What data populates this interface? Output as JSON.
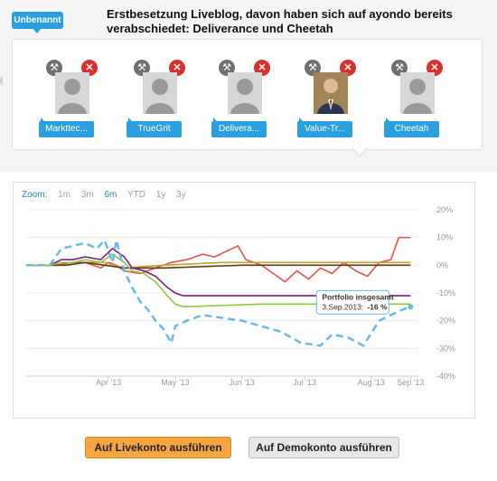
{
  "badge": {
    "label": "Unbenannt"
  },
  "headline": "Erstbesetzung Liveblog, davon haben sich auf ayondo bereits verabschiedet: Deliverance und Cheetah",
  "members": [
    {
      "name": "Markttec...",
      "avatar": "person-silhouette-icon",
      "settings_icon": "wrench-icon",
      "remove_icon": "close-icon"
    },
    {
      "name": "TrueGrit",
      "avatar": "person-silhouette-icon",
      "settings_icon": "wrench-icon",
      "remove_icon": "close-icon"
    },
    {
      "name": "Delivera...",
      "avatar": "person-silhouette-icon",
      "settings_icon": "wrench-icon",
      "remove_icon": "close-icon"
    },
    {
      "name": "Value-Tr...",
      "avatar": "portrait-photo",
      "settings_icon": "wrench-icon",
      "remove_icon": "close-icon"
    },
    {
      "name": "Cheetah",
      "avatar": "person-silhouette-icon",
      "settings_icon": "wrench-icon",
      "remove_icon": "close-icon"
    }
  ],
  "zoom": {
    "label": "Zoom:",
    "options": [
      "1m",
      "3m",
      "6m",
      "YTD",
      "1y",
      "3y"
    ],
    "selected": "6m"
  },
  "tooltip": {
    "title": "Portfolio insgesamt",
    "date": "3.Sep.2013:",
    "value": "-16 %"
  },
  "buttons": {
    "live": "Auf Livekonto ausführen",
    "demo": "Auf Demokonto ausführen"
  },
  "colors": {
    "accent": "#2aa0e0",
    "live_button": "#f7a540",
    "remove": "#d93030"
  },
  "chart_data": {
    "type": "line",
    "x_ticks": [
      "Apr '13",
      "May '13",
      "Jun '13",
      "Jul '13",
      "Aug '13",
      "Sep '13"
    ],
    "y_ticks": [
      "20%",
      "10%",
      "0%",
      "-10%",
      "-20%",
      "-30%",
      "-40%"
    ],
    "ylim": [
      -40,
      20
    ],
    "grid": true,
    "series": [
      {
        "color": "#e8524a",
        "dash": false,
        "points": [
          [
            0,
            0
          ],
          [
            0.08,
            0
          ],
          [
            0.11,
            1
          ],
          [
            0.15,
            1
          ],
          [
            0.19,
            -1
          ],
          [
            0.21,
            1
          ],
          [
            0.23,
            0
          ],
          [
            0.25,
            -2
          ],
          [
            0.29,
            -3
          ],
          [
            0.33,
            -1
          ],
          [
            0.37,
            1
          ],
          [
            0.41,
            2
          ],
          [
            0.45,
            4
          ],
          [
            0.48,
            3
          ],
          [
            0.51,
            5
          ],
          [
            0.54,
            7
          ],
          [
            0.56,
            2
          ],
          [
            0.6,
            0
          ],
          [
            0.63,
            -3
          ],
          [
            0.66,
            -6
          ],
          [
            0.69,
            -2
          ],
          [
            0.72,
            -5
          ],
          [
            0.75,
            -1
          ],
          [
            0.78,
            -3
          ],
          [
            0.81,
            1
          ],
          [
            0.84,
            -2
          ],
          [
            0.87,
            -4
          ],
          [
            0.9,
            1
          ],
          [
            0.93,
            2
          ],
          [
            0.95,
            10
          ],
          [
            0.98,
            10
          ]
        ]
      },
      {
        "color": "#c9a227",
        "dash": false,
        "points": [
          [
            0,
            0
          ],
          [
            0.1,
            0
          ],
          [
            0.15,
            1
          ],
          [
            0.2,
            1
          ],
          [
            0.25,
            -1
          ],
          [
            0.35,
            0
          ],
          [
            0.5,
            1
          ],
          [
            0.7,
            1
          ],
          [
            0.9,
            1
          ],
          [
            0.98,
            1
          ]
        ]
      },
      {
        "color": "#5b3a1a",
        "dash": false,
        "points": [
          [
            0,
            0
          ],
          [
            0.1,
            0
          ],
          [
            0.15,
            1
          ],
          [
            0.25,
            -1
          ],
          [
            0.35,
            -1
          ],
          [
            0.55,
            0
          ],
          [
            0.8,
            0
          ],
          [
            0.98,
            0
          ]
        ]
      },
      {
        "color": "#7e1f86",
        "dash": false,
        "points": [
          [
            0,
            0
          ],
          [
            0.06,
            0
          ],
          [
            0.09,
            2
          ],
          [
            0.12,
            2
          ],
          [
            0.15,
            3
          ],
          [
            0.19,
            2
          ],
          [
            0.22,
            6
          ],
          [
            0.25,
            3
          ],
          [
            0.27,
            -1
          ],
          [
            0.3,
            -2
          ],
          [
            0.33,
            -4
          ],
          [
            0.36,
            -8
          ],
          [
            0.38,
            -10
          ],
          [
            0.4,
            -11
          ],
          [
            0.6,
            -11
          ],
          [
            0.8,
            -11
          ],
          [
            0.98,
            -11
          ]
        ]
      },
      {
        "color": "#8fc93b",
        "dash": false,
        "points": [
          [
            0,
            0
          ],
          [
            0.06,
            0
          ],
          [
            0.09,
            1
          ],
          [
            0.12,
            1
          ],
          [
            0.15,
            2
          ],
          [
            0.19,
            1
          ],
          [
            0.22,
            4
          ],
          [
            0.25,
            1
          ],
          [
            0.27,
            -2
          ],
          [
            0.3,
            -3
          ],
          [
            0.33,
            -6
          ],
          [
            0.36,
            -11
          ],
          [
            0.38,
            -14
          ],
          [
            0.4,
            -15
          ],
          [
            0.6,
            -14
          ],
          [
            0.8,
            -14
          ],
          [
            0.98,
            -14
          ]
        ]
      },
      {
        "color": "#6ab9e8",
        "dash": true,
        "points": [
          [
            0,
            0
          ],
          [
            0.06,
            0
          ],
          [
            0.09,
            6
          ],
          [
            0.12,
            7
          ],
          [
            0.15,
            8
          ],
          [
            0.18,
            6
          ],
          [
            0.2,
            9
          ],
          [
            0.22,
            1
          ],
          [
            0.23,
            9
          ],
          [
            0.25,
            -2
          ],
          [
            0.27,
            -8
          ],
          [
            0.29,
            -13
          ],
          [
            0.31,
            -16
          ],
          [
            0.33,
            -20
          ],
          [
            0.35,
            -23
          ],
          [
            0.37,
            -28
          ],
          [
            0.38,
            -22
          ],
          [
            0.41,
            -20
          ],
          [
            0.45,
            -18
          ],
          [
            0.5,
            -19
          ],
          [
            0.55,
            -20
          ],
          [
            0.6,
            -22
          ],
          [
            0.65,
            -24
          ],
          [
            0.7,
            -28
          ],
          [
            0.75,
            -29
          ],
          [
            0.78,
            -25
          ],
          [
            0.82,
            -26
          ],
          [
            0.86,
            -29
          ],
          [
            0.9,
            -20
          ],
          [
            0.93,
            -18
          ],
          [
            0.96,
            -16
          ],
          [
            0.98,
            -15
          ]
        ]
      }
    ]
  }
}
